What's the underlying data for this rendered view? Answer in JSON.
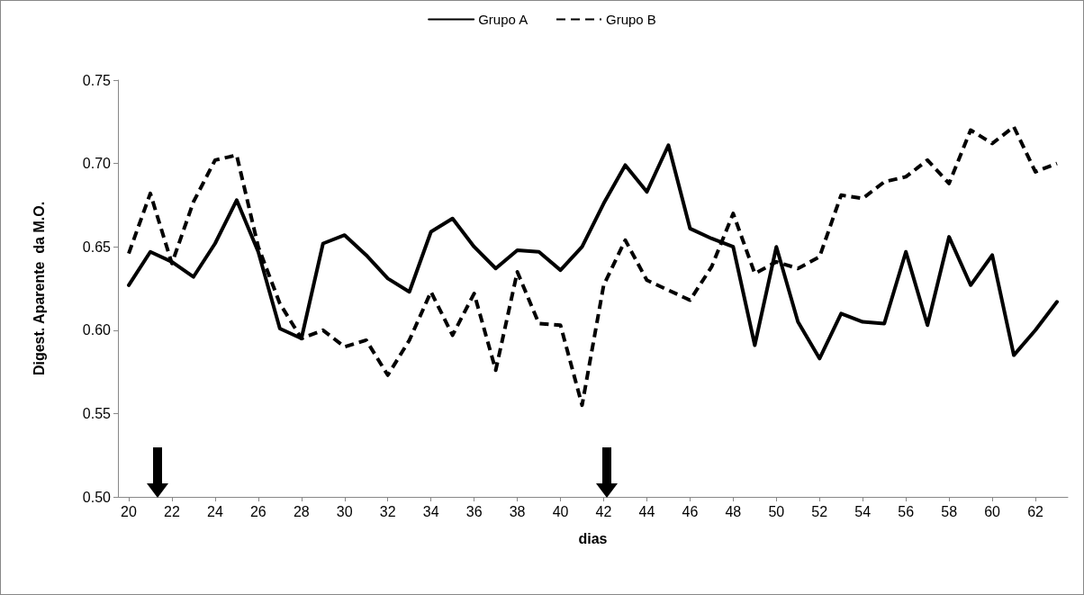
{
  "chart_data": {
    "type": "line",
    "xlabel": "dias",
    "ylabel": "Digest. Aparente  da M.O.",
    "x": [
      20,
      21,
      22,
      23,
      24,
      25,
      26,
      27,
      28,
      29,
      30,
      31,
      32,
      33,
      34,
      35,
      36,
      37,
      38,
      39,
      40,
      41,
      42,
      43,
      44,
      45,
      46,
      47,
      48,
      49,
      50,
      51,
      52,
      53,
      54,
      55,
      56,
      57,
      58,
      59,
      60,
      61,
      62,
      63
    ],
    "series": [
      {
        "name": "Grupo A",
        "color": "#000000",
        "line_style": "solid",
        "values": [
          0.627,
          0.647,
          0.641,
          0.632,
          0.652,
          0.678,
          0.647,
          0.601,
          0.595,
          0.652,
          0.657,
          0.645,
          0.631,
          0.623,
          0.659,
          0.667,
          0.65,
          0.637,
          0.648,
          0.647,
          0.636,
          0.65,
          0.676,
          0.699,
          0.683,
          0.711,
          0.661,
          0.655,
          0.65,
          0.591,
          0.65,
          0.605,
          0.583,
          0.61,
          0.605,
          0.604,
          0.647,
          0.603,
          0.656,
          0.627,
          0.645,
          0.585,
          0.6,
          0.617
        ]
      },
      {
        "name": "Grupo B",
        "color": "#000000",
        "line_style": "dashed",
        "values": [
          0.646,
          0.682,
          0.64,
          0.677,
          0.702,
          0.705,
          0.65,
          0.616,
          0.595,
          0.6,
          0.59,
          0.594,
          0.573,
          0.594,
          0.623,
          0.597,
          0.622,
          0.576,
          0.635,
          0.604,
          0.603,
          0.555,
          0.627,
          0.654,
          0.63,
          0.624,
          0.618,
          0.638,
          0.67,
          0.634,
          0.641,
          0.637,
          0.644,
          0.681,
          0.679,
          0.689,
          0.692,
          0.702,
          0.688,
          0.72,
          0.712,
          0.722,
          0.695,
          0.7
        ]
      }
    ],
    "xlim": [
      19.5,
      63.5
    ],
    "xticks": [
      20,
      22,
      24,
      26,
      28,
      30,
      32,
      34,
      36,
      38,
      40,
      42,
      44,
      46,
      48,
      50,
      52,
      54,
      56,
      58,
      60,
      62
    ],
    "ylim": [
      0.5,
      0.75
    ],
    "yticks": [
      {
        "value": 0.5,
        "label": "0.50"
      },
      0.55,
      {
        "value": 0.6,
        "label": "0.60"
      },
      0.65,
      {
        "value": 0.7,
        "label": "0.70"
      },
      0.75
    ],
    "grid": false,
    "legend": "top",
    "marker": "none"
  }
}
